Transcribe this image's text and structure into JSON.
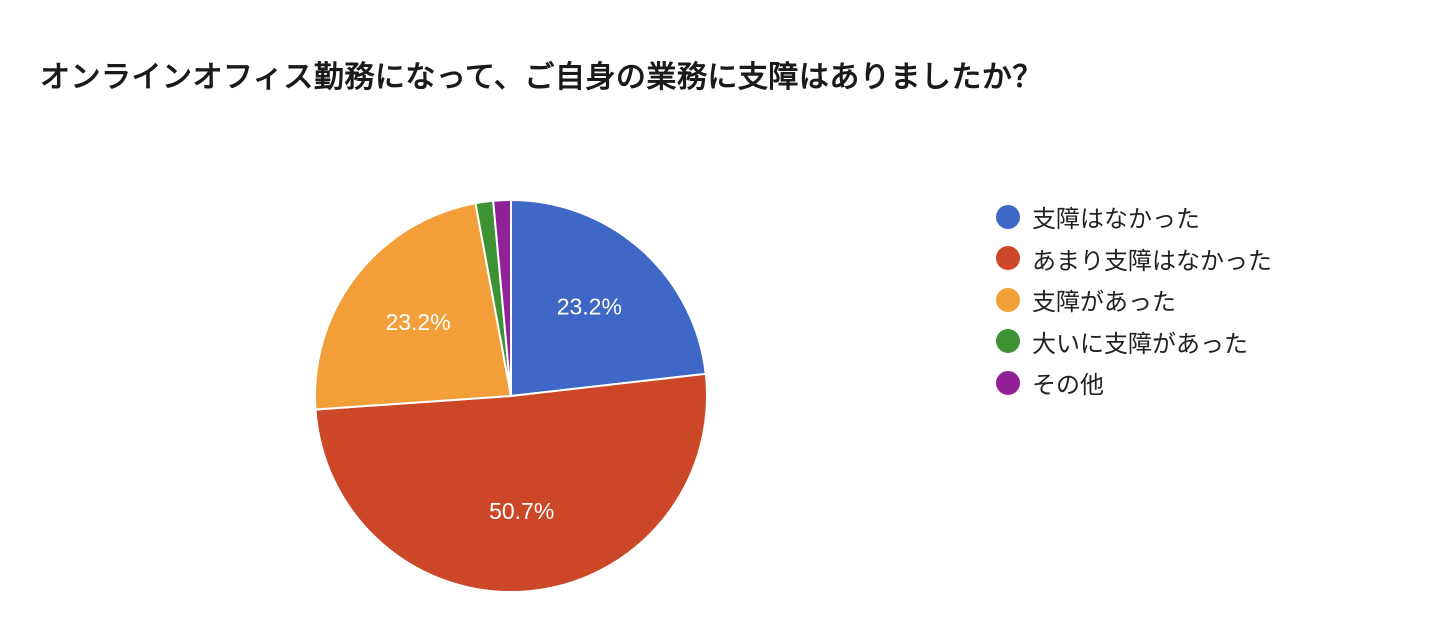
{
  "chart_data": {
    "type": "pie",
    "title": "オンラインオフィス勤務になって、ご自身の業務に支障はありましたか？",
    "slices": [
      {
        "label": "支障はなかった",
        "value": 23.2,
        "display": "23.2%",
        "color": "#3e67c6"
      },
      {
        "label": "あまり支障はなかった",
        "value": 50.7,
        "display": "50.7%",
        "color": "#cc4628"
      },
      {
        "label": "支障があった",
        "value": 23.2,
        "display": "23.2%",
        "color": "#f29f39"
      },
      {
        "label": "大いに支障があった",
        "value": 1.45,
        "display": "",
        "color": "#3d9233"
      },
      {
        "label": "その他",
        "value": 1.45,
        "display": "",
        "color": "#912196"
      }
    ],
    "start_angle_deg": 90,
    "direction": "clockwise",
    "legend_position": "right"
  }
}
